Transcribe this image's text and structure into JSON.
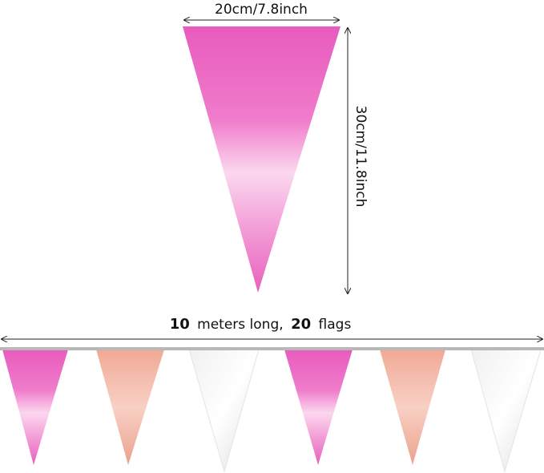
{
  "dimensions": {
    "width": "20cm/7.8inch",
    "height": "30cm/11.8inch"
  },
  "bunting": {
    "length_label": [
      "10",
      "meters long,",
      "20",
      "flags"
    ]
  }
}
